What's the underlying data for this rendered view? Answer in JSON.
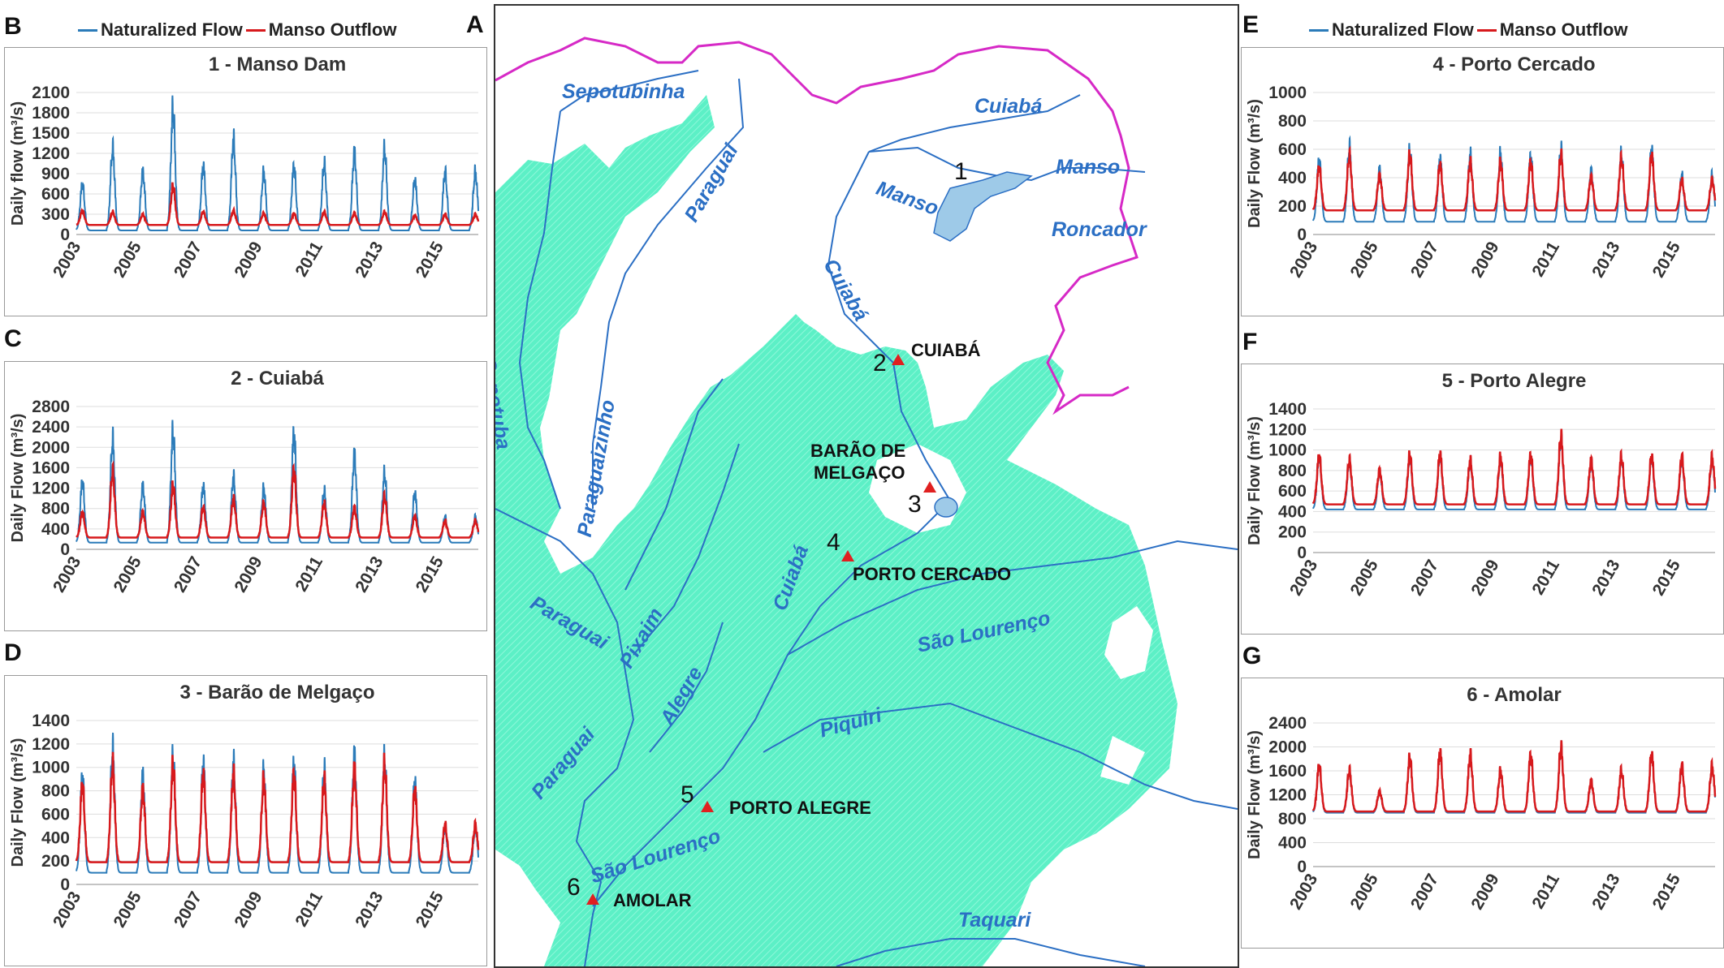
{
  "colors": {
    "naturalized": "#2b7bb9",
    "manso": "#d7191c",
    "wetland": "#5cf0c6",
    "river": "#2b6fc4",
    "basin": "#d629c6"
  },
  "legend": {
    "naturalized": "Naturalized Flow",
    "manso": "Manso Outflow"
  },
  "panels": {
    "A": "A",
    "B": "B",
    "C": "C",
    "D": "D",
    "E": "E",
    "F": "F",
    "G": "G"
  },
  "chart_data": [
    {
      "panel": "B",
      "type": "line",
      "title": "1 - Manso Dam",
      "ylabel": "Daily flow (m³/s)",
      "xlim": [
        2003,
        2016.3
      ],
      "ylim": [
        0,
        2100
      ],
      "yticks": [
        "0",
        "300",
        "600",
        "900",
        "1200",
        "1500",
        "1800",
        "2100"
      ],
      "xticks": [
        "2003",
        "2005",
        "2007",
        "2009",
        "2011",
        "2013",
        "2015"
      ],
      "annual_peaks": {
        "naturalized": [
          850,
          1450,
          1050,
          2150,
          1150,
          1600,
          1050,
          1150,
          1200,
          1380,
          1450,
          920,
          1050
        ],
        "manso": [
          380,
          360,
          320,
          800,
          360,
          380,
          340,
          330,
          360,
          340,
          360,
          300,
          320
        ]
      },
      "base": {
        "naturalized": 60,
        "manso": 140
      },
      "series": [
        {
          "name": "Naturalized Flow"
        },
        {
          "name": "Manso Outflow"
        }
      ]
    },
    {
      "panel": "C",
      "type": "line",
      "title": "2 - Cuiabá",
      "ylabel": "Daily Flow (m³/s)",
      "xlim": [
        2003,
        2016.3
      ],
      "ylim": [
        0,
        2800
      ],
      "yticks": [
        "0",
        "400",
        "800",
        "1200",
        "1600",
        "2000",
        "2400",
        "2800"
      ],
      "xticks": [
        "2003",
        "2005",
        "2007",
        "2009",
        "2011",
        "2013",
        "2015"
      ],
      "annual_peaks": {
        "naturalized": [
          1500,
          2450,
          1400,
          2650,
          1400,
          1600,
          1350,
          2600,
          1300,
          2100,
          1700,
          1250,
          700
        ],
        "manso": [
          800,
          1700,
          800,
          1400,
          900,
          1100,
          1000,
          1750,
          1000,
          900,
          1150,
          700,
          600
        ]
      },
      "base": {
        "naturalized": 130,
        "manso": 230
      },
      "series": [
        {
          "name": "Naturalized Flow"
        },
        {
          "name": "Manso Outflow"
        }
      ]
    },
    {
      "panel": "D",
      "type": "line",
      "title": "3 - Barão de Melgaço",
      "ylabel": "Daily Flow (m³/s)",
      "xlim": [
        2003,
        2016.3
      ],
      "ylim": [
        0,
        1400
      ],
      "yticks": [
        "0",
        "200",
        "400",
        "600",
        "800",
        "1000",
        "1200",
        "1400"
      ],
      "xticks": [
        "2003",
        "2005",
        "2007",
        "2009",
        "2011",
        "2013",
        "2015"
      ],
      "annual_peaks": {
        "naturalized": [
          1050,
          1320,
          1050,
          1250,
          1180,
          1180,
          1100,
          1180,
          1120,
          1250,
          1230,
          1000,
          550
        ],
        "manso": [
          950,
          1150,
          900,
          1150,
          1050,
          1050,
          1000,
          1050,
          1000,
          1100,
          1150,
          900,
          550
        ]
      },
      "base": {
        "naturalized": 100,
        "manso": 190
      },
      "series": [
        {
          "name": "Naturalized Flow"
        },
        {
          "name": "Manso Outflow"
        }
      ]
    },
    {
      "panel": "E",
      "type": "line",
      "title": "4 - Porto Cercado",
      "ylabel": "Daily Flow (m³/s)",
      "xlim": [
        2003,
        2016.3
      ],
      "ylim": [
        0,
        1000
      ],
      "yticks": [
        "0",
        "200",
        "400",
        "600",
        "800",
        "1000"
      ],
      "xticks": [
        "2003",
        "2005",
        "2007",
        "2009",
        "2011",
        "2013",
        "2015"
      ],
      "annual_peaks": {
        "naturalized": [
          590,
          690,
          510,
          670,
          600,
          630,
          640,
          620,
          680,
          500,
          640,
          680,
          460
        ],
        "manso": [
          520,
          610,
          450,
          620,
          540,
          560,
          560,
          560,
          620,
          440,
          590,
          620,
          410
        ]
      },
      "base": {
        "naturalized": 90,
        "manso": 170
      },
      "series": [
        {
          "name": "Naturalized Flow"
        },
        {
          "name": "Manso Outflow"
        }
      ]
    },
    {
      "panel": "F",
      "type": "line",
      "title": "5 - Porto Alegre",
      "ylabel": "Daily Flow (m³/s)",
      "xlim": [
        2003,
        2016.3
      ],
      "ylim": [
        0,
        1400
      ],
      "yticks": [
        "0",
        "200",
        "400",
        "600",
        "800",
        "1000",
        "1200",
        "1400"
      ],
      "xticks": [
        "2003",
        "2005",
        "2007",
        "2009",
        "2011",
        "2013",
        "2015"
      ],
      "annual_peaks": {
        "naturalized": [
          1010,
          960,
          850,
          1020,
          1030,
          960,
          1000,
          1020,
          1230,
          960,
          1000,
          1010,
          990
        ],
        "manso": [
          1010,
          960,
          850,
          1020,
          1030,
          960,
          1000,
          1020,
          1230,
          960,
          1000,
          1010,
          990
        ]
      },
      "base": {
        "naturalized": 420,
        "manso": 470
      },
      "series": [
        {
          "name": "Naturalized Flow"
        },
        {
          "name": "Manso Outflow"
        }
      ]
    },
    {
      "panel": "G",
      "type": "line",
      "title": "6 - Amolar",
      "ylabel": "Daily Flow (m³/s)",
      "xlim": [
        2003,
        2016.3
      ],
      "ylim": [
        0,
        2400
      ],
      "yticks": [
        "0",
        "400",
        "800",
        "1200",
        "1600",
        "2000",
        "2400"
      ],
      "xticks": [
        "2003",
        "2005",
        "2007",
        "2009",
        "2011",
        "2013",
        "2015"
      ],
      "annual_peaks": {
        "naturalized": [
          1800,
          1700,
          1300,
          1950,
          2050,
          2000,
          1700,
          2000,
          2150,
          1500,
          1700,
          2020,
          1780
        ],
        "manso": [
          1800,
          1700,
          1300,
          1950,
          2050,
          2000,
          1700,
          2000,
          2150,
          1500,
          1700,
          2020,
          1780
        ]
      },
      "base": {
        "naturalized": 900,
        "manso": 920
      },
      "series": [
        {
          "name": "Naturalized Flow"
        },
        {
          "name": "Manso Outflow"
        }
      ]
    }
  ],
  "map": {
    "rivers": {
      "sepotubinha": "Sepotubinha",
      "paraguai_top": "Paraguai",
      "cuiaba_top": "Cuiabá",
      "manso": "Manso",
      "manso2": "Manso",
      "roncador": "Roncador",
      "cuiaba_mid": "Cuiabá",
      "sepotuba": "Sepotuba",
      "paraguaizinho": "Paraguaizinho",
      "paraguai_mid": "Paraguai",
      "pixaim": "Pixaim",
      "cuiaba_low": "Cuiabá",
      "sao_lourenco_r": "São Lourenço",
      "alegre": "Alegre",
      "piquiri": "Piquiri",
      "paraguai_low": "Paraguai",
      "sao_lourenco_l": "São Lourenço",
      "taquari": "Taquari"
    },
    "stations": {
      "s1": {
        "num": "1"
      },
      "s2": {
        "num": "2",
        "name": "CUIABÁ"
      },
      "s3": {
        "num": "3",
        "name_line1": "BARÃO DE",
        "name_line2": "MELGAÇO"
      },
      "s4": {
        "num": "4",
        "name": "PORTO CERCADO"
      },
      "s5": {
        "num": "5",
        "name": "PORTO ALEGRE"
      },
      "s6": {
        "num": "6",
        "name": "AMOLAR"
      }
    }
  }
}
